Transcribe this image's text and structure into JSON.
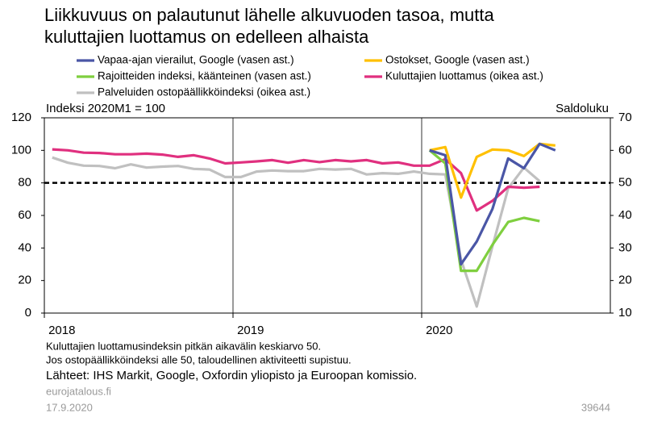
{
  "chart_data": {
    "type": "line",
    "title_lines": [
      "Liikkuvuus on palautunut lähelle alkuvuoden tasoa, mutta",
      "kuluttajien luottamus on edelleen alhaista"
    ],
    "ylabel": "Indeksi 2020M1 = 100",
    "y2label": "Saldoluku",
    "categories": [
      "2018",
      null,
      null,
      null,
      null,
      null,
      null,
      null,
      null,
      null,
      null,
      null,
      "2019",
      null,
      null,
      null,
      null,
      null,
      null,
      null,
      null,
      null,
      null,
      null,
      "2020",
      null,
      null,
      null,
      null,
      null,
      null,
      null,
      null,
      null,
      null,
      null
    ],
    "ylim": [
      0,
      120
    ],
    "yticks": [
      0,
      20,
      40,
      60,
      80,
      100,
      120
    ],
    "y2lim": [
      10,
      70
    ],
    "y2ticks": [
      10,
      20,
      30,
      40,
      50,
      60,
      70
    ],
    "reference_line": 80,
    "series": [
      {
        "name": "Vapaa-ajan vierailut, Google (vasen ast.)",
        "color": "#4a56a6",
        "values": [
          null,
          null,
          null,
          null,
          null,
          null,
          null,
          null,
          null,
          null,
          null,
          null,
          null,
          null,
          null,
          null,
          null,
          null,
          null,
          null,
          null,
          null,
          null,
          null,
          100,
          97,
          30,
          44,
          64,
          95,
          89,
          104,
          100,
          null,
          null,
          null
        ]
      },
      {
        "name": "Ostokset, Google (vasen ast.)",
        "color": "#ffc000",
        "values": [
          null,
          null,
          null,
          null,
          null,
          null,
          null,
          null,
          null,
          null,
          null,
          null,
          null,
          null,
          null,
          null,
          null,
          null,
          null,
          null,
          null,
          null,
          null,
          null,
          100,
          102,
          71,
          96,
          100.5,
          100,
          96.5,
          104,
          103,
          null,
          null,
          null
        ]
      },
      {
        "name": "Rajoitteiden indeksi, käänteinen (vasen ast.)",
        "color": "#7fcf3f",
        "values": [
          null,
          null,
          null,
          null,
          null,
          null,
          null,
          null,
          null,
          null,
          null,
          null,
          null,
          null,
          null,
          null,
          null,
          null,
          null,
          null,
          null,
          null,
          null,
          null,
          100,
          92,
          26,
          26,
          42,
          56,
          58.5,
          56.5,
          null,
          null,
          null,
          null
        ]
      },
      {
        "name": "Kuluttajien luottamus (oikea ast.)",
        "color": "#e0307f",
        "axis": "y2",
        "values": [
          60.3,
          60.0,
          59.3,
          59.2,
          58.8,
          58.8,
          59.0,
          58.7,
          58.0,
          58.5,
          57.5,
          56.0,
          56.3,
          56.6,
          57.0,
          56.2,
          57.0,
          56.4,
          57.0,
          56.6,
          57.0,
          56.0,
          56.3,
          55.3,
          55.3,
          57.3,
          53.0,
          41.5,
          44.5,
          48.8,
          48.5,
          48.8,
          null,
          null,
          null,
          null
        ]
      },
      {
        "name": "Palveluiden ostopäällikköindeksi (oikea ast.)",
        "color": "#c0c0c0",
        "axis": "y2",
        "values": [
          57.8,
          56.2,
          55.3,
          55.2,
          54.5,
          55.7,
          54.7,
          55.0,
          55.2,
          54.3,
          54.1,
          51.8,
          51.8,
          53.5,
          53.8,
          53.6,
          53.6,
          54.3,
          54.1,
          54.3,
          52.6,
          53.0,
          52.8,
          53.5,
          52.8,
          52.6,
          26.4,
          12.0,
          30.5,
          48.3,
          54.7,
          50.5,
          null,
          null,
          null,
          null
        ]
      }
    ],
    "notes": [
      "Kuluttajien luottamusindeksin pitkän aikavälin keskiarvo 50.",
      "Jos ostopäällikköindeksi alle 50, taloudellinen aktiviteetti supistuu."
    ],
    "source": "Lähteet: IHS Markit, Google, Oxfordin yliopisto ja Euroopan komissio.",
    "site": "eurojatalous.fi",
    "date": "17.9.2020",
    "id": "39644"
  }
}
